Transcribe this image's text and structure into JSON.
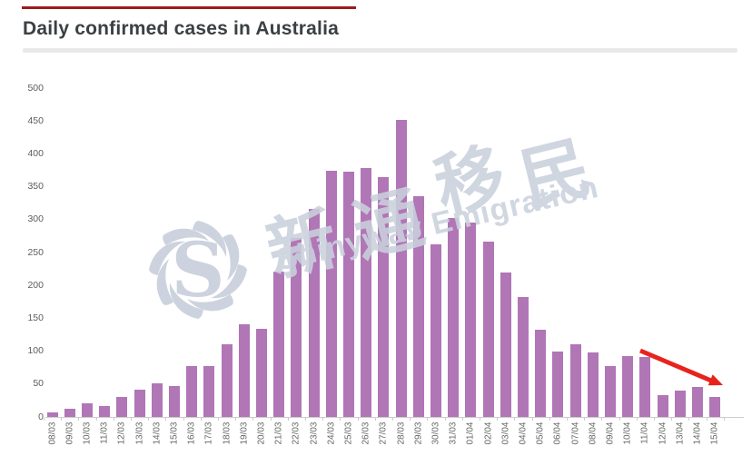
{
  "page": {
    "top_accent_color": "#9d1b1f",
    "background": "#ffffff"
  },
  "header": {
    "title": "Daily confirmed cases in Australia"
  },
  "watermark": {
    "logo_letter": "S",
    "chinese_text": "新通移民",
    "latin_text": "Shinyway Emigration",
    "color": "#cad1dc"
  },
  "annotation": {
    "name": "red-down-trend-arrow",
    "color": "#e8231c"
  },
  "chart_data": {
    "type": "bar",
    "title": "Daily confirmed cases in Australia",
    "categories": [
      "08/03",
      "09/03",
      "10/03",
      "11/03",
      "12/03",
      "13/03",
      "14/03",
      "15/03",
      "16/03",
      "17/03",
      "18/03",
      "19/03",
      "20/03",
      "21/03",
      "22/03",
      "23/03",
      "24/03",
      "25/03",
      "26/03",
      "27/03",
      "28/03",
      "29/03",
      "30/03",
      "31/03",
      "01/04",
      "02/04",
      "03/04",
      "04/04",
      "05/04",
      "06/04",
      "07/04",
      "08/04",
      "09/04",
      "10/04",
      "11/04",
      "12/04",
      "13/04",
      "14/04",
      "15/04"
    ],
    "values": [
      7,
      13,
      21,
      16,
      30,
      41,
      51,
      47,
      78,
      77,
      111,
      141,
      134,
      221,
      272,
      316,
      374,
      373,
      378,
      365,
      452,
      335,
      262,
      302,
      295,
      266,
      220,
      182,
      132,
      100,
      110,
      98,
      78,
      93,
      91,
      33,
      40,
      46,
      30
    ],
    "xlabel": "",
    "ylabel": "",
    "ylim": [
      0,
      500
    ],
    "yticks": [
      0,
      50,
      100,
      150,
      200,
      250,
      300,
      350,
      400,
      450,
      500
    ],
    "grid": false,
    "legend": false,
    "bar_color": "#b076b6",
    "axis_color": "#cccccc",
    "label_color": "#666666"
  }
}
